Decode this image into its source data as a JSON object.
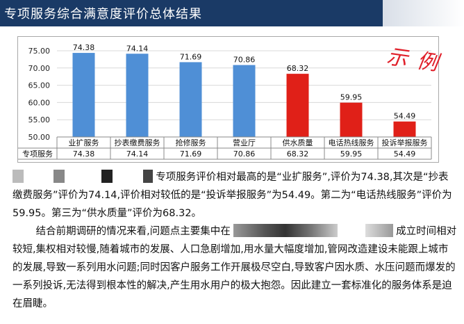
{
  "header": {
    "title": "专项服务综合满意度评价总体结果"
  },
  "watermark": "示例",
  "chart_data": {
    "type": "bar",
    "categories": [
      "业扩服务",
      "抄表缴费服务",
      "抢修服务",
      "营业厅",
      "供水质量",
      "电话热线服务",
      "投诉举报服务"
    ],
    "values": [
      74.38,
      74.14,
      71.69,
      70.86,
      68.32,
      59.95,
      54.49
    ],
    "value_labels": [
      "74.38",
      "74.14",
      "71.69",
      "70.86",
      "68.32",
      "59.95",
      "54.49"
    ],
    "bar_colors": [
      "#4f8fd6",
      "#4f8fd6",
      "#4f8fd6",
      "#4f8fd6",
      "#e02018",
      "#e02018",
      "#e02018"
    ],
    "ylim": [
      50,
      75
    ],
    "yticks": [
      "50.00",
      "55.00",
      "60.00",
      "65.00",
      "70.00",
      "75.00"
    ],
    "table_row_label": "专项服务",
    "grid": true
  },
  "paragraph1": {
    "text": "专项服务评价相对最高的是“业扩服务”,评价为74.38,其次是“抄表缴费服务”评价为74.14,评价相对较低的是“投诉举报服务”为54.49。第二为“电话热线服务”评价为59.95。第三为“供水质量”评价为68.32。"
  },
  "paragraph2": {
    "text_before": "结合前期调研的情况来看,问题点主要集中在",
    "text_after": "成立时间相对较短,集权相对较慢,随着城市的发展、人口急剧增加,用水量大幅度增加,管网改造建设未能跟上城市的发展,导致一系列用水问题;同时因客户服务工作开展极尽空白,导致客户因水质、水压问题而爆发的一系列投诉,无法得到根本性的解决,产生用水用户的极大抱怨。因此建立一套标准化的服务体系是迫在眉睫。"
  }
}
